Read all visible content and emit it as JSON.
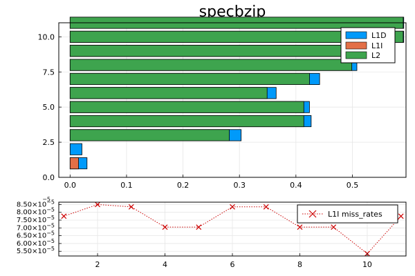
{
  "chart_data": [
    {
      "type": "bar",
      "orientation": "horizontal",
      "title": "specbzip",
      "xlabel": "",
      "ylabel": "",
      "xlim": [
        -0.02,
        0.595
      ],
      "ylim": [
        0,
        11
      ],
      "xticks": [
        0.0,
        0.1,
        0.2,
        0.3,
        0.4,
        0.5
      ],
      "xtick_labels": [
        "0.0",
        "0.1",
        "0.2",
        "0.3",
        "0.4",
        "0.5"
      ],
      "yticks": [
        0,
        2.5,
        5,
        7.5,
        10
      ],
      "ytick_labels": [
        "0.0",
        "2.5",
        "5.0",
        "7.5",
        "10.0"
      ],
      "grid": true,
      "legend_position": "top-right",
      "categories": [
        1,
        2,
        3,
        4,
        5,
        6,
        7,
        8,
        9,
        10,
        11
      ],
      "series": [
        {
          "name": "L1D",
          "color": "#009AFA",
          "values": [
            0.03,
            0.021,
            0.303,
            0.427,
            0.424,
            0.365,
            0.442,
            0.508,
            0.508,
            0.591,
            0.591
          ]
        },
        {
          "name": "L1I",
          "color": "#E36F47",
          "values": [
            0.015,
            0.0,
            0.0,
            0.0,
            0.0,
            0.0,
            0.0,
            0.0,
            0.0,
            0.0,
            0.0
          ]
        },
        {
          "name": "L2",
          "color": "#3EA44E",
          "values": [
            0.0,
            0.0,
            0.282,
            0.414,
            0.414,
            0.349,
            0.424,
            0.499,
            0.499,
            0.59,
            0.59
          ]
        }
      ]
    },
    {
      "type": "line",
      "title": "",
      "xlabel": "",
      "ylabel": "",
      "xlim": [
        0.85,
        11.15
      ],
      "ylim": [
        5.2e-05,
        8.65e-05
      ],
      "xticks": [
        2,
        4,
        6,
        8,
        10
      ],
      "xtick_labels": [
        "2",
        "4",
        "6",
        "8",
        "10"
      ],
      "yticks": [
        5.5e-05,
        6e-05,
        6.5e-05,
        7e-05,
        7.5e-05,
        8e-05,
        8.5e-05
      ],
      "ytick_labels": [
        "5.50×10",
        "6.00×10",
        "6.50×10",
        "7.00×10",
        "7.50×10",
        "8.00×10",
        "8.50×10"
      ],
      "ytick_exponent": "−5",
      "grid": true,
      "legend_position": "top-right",
      "series": [
        {
          "name": "L1I miss_rates",
          "color": "#CC0000",
          "marker": "x",
          "line_style": "dotted",
          "x": [
            1,
            2,
            3,
            4,
            5,
            6,
            7,
            8,
            9,
            10,
            11
          ],
          "y": [
            7.75e-05,
            8.5e-05,
            8.35e-05,
            7.05e-05,
            7.05e-05,
            8.35e-05,
            8.35e-05,
            7.05e-05,
            7.05e-05,
            5.35e-05,
            7.75e-05
          ]
        }
      ]
    }
  ]
}
